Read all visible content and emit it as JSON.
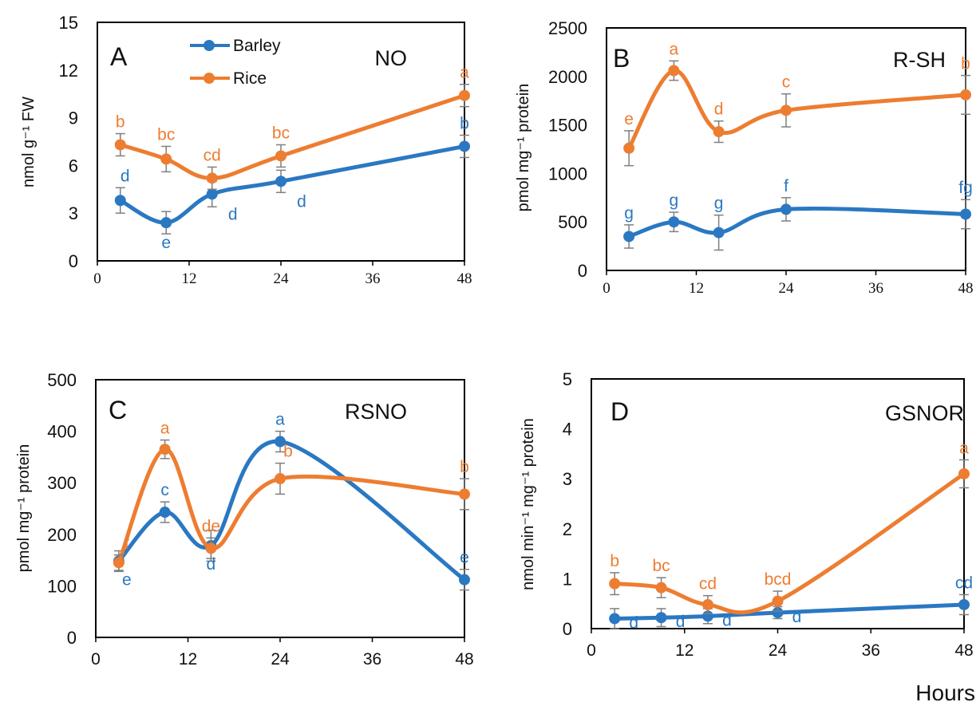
{
  "colors": {
    "barley": "#2a78c2",
    "rice": "#ed7d31",
    "error_bar": "#7f7f7f",
    "axis": "#000000"
  },
  "legend": {
    "items": [
      {
        "label": "Barley",
        "color": "#2a78c2"
      },
      {
        "label": "Rice",
        "color": "#ed7d31"
      }
    ]
  },
  "x_axis_title": "Hours",
  "chart_data": [
    {
      "type": "line",
      "panel": "A",
      "title": "NO",
      "ylabel": "nmol g⁻¹ FW",
      "xlim": [
        0,
        48
      ],
      "ylim": [
        0,
        15
      ],
      "xticks": [
        "0",
        "12",
        "24",
        "36",
        "48"
      ],
      "yticks": [
        "0",
        "3",
        "6",
        "9",
        "12",
        "15"
      ],
      "x_tick_font": "serif",
      "legend": "top-left",
      "x": [
        3,
        9,
        15,
        24,
        48
      ],
      "series": [
        {
          "name": "Barley",
          "values": [
            3.8,
            2.4,
            4.2,
            5.0,
            7.2
          ],
          "errors": [
            0.8,
            0.7,
            0.8,
            0.7,
            0.7
          ],
          "letters": [
            "d",
            "e",
            "d",
            "d",
            "b"
          ]
        },
        {
          "name": "Rice",
          "values": [
            7.3,
            6.4,
            5.2,
            6.6,
            10.4
          ],
          "errors": [
            0.7,
            0.8,
            0.7,
            0.7,
            0.7
          ],
          "letters": [
            "b",
            "bc",
            "cd",
            "bc",
            "a"
          ]
        }
      ]
    },
    {
      "type": "line",
      "panel": "B",
      "title": "R-SH",
      "ylabel": "pmol mg⁻¹ protein",
      "xlim": [
        0,
        48
      ],
      "ylim": [
        0,
        2500
      ],
      "xticks": [
        "0",
        "12",
        "24",
        "36",
        "48"
      ],
      "yticks": [
        "0",
        "500",
        "1000",
        "1500",
        "2000",
        "2500"
      ],
      "x_tick_font": "serif",
      "x": [
        3,
        9,
        15,
        24,
        48
      ],
      "series": [
        {
          "name": "Barley",
          "values": [
            350,
            500,
            390,
            630,
            580
          ],
          "errors": [
            120,
            100,
            180,
            120,
            150
          ],
          "letters": [
            "g",
            "g",
            "g",
            "f",
            "fg"
          ]
        },
        {
          "name": "Rice",
          "values": [
            1260,
            2060,
            1430,
            1650,
            1810
          ],
          "errors": [
            180,
            100,
            110,
            170,
            200
          ],
          "letters": [
            "e",
            "a",
            "d",
            "c",
            "b"
          ]
        }
      ]
    },
    {
      "type": "line",
      "panel": "C",
      "title": "RSNO",
      "ylabel": "pmol mg⁻¹ protein",
      "xlim": [
        0,
        48
      ],
      "ylim": [
        0,
        500
      ],
      "xticks": [
        "0",
        "12",
        "24",
        "36",
        "48"
      ],
      "yticks": [
        "0",
        "100",
        "200",
        "300",
        "400",
        "500"
      ],
      "x_tick_font": "sans",
      "x": [
        3,
        9,
        15,
        24,
        48
      ],
      "series": [
        {
          "name": "Barley",
          "values": [
            148,
            243,
            178,
            380,
            112
          ],
          "errors": [
            20,
            20,
            30,
            20,
            20
          ],
          "letters": [
            "e",
            "c",
            "d",
            "a",
            "e"
          ]
        },
        {
          "name": "Rice",
          "values": [
            145,
            365,
            173,
            308,
            278
          ],
          "errors": [
            15,
            18,
            20,
            30,
            30
          ],
          "letters": [
            "f",
            "a",
            "de",
            "b",
            "b"
          ]
        }
      ]
    },
    {
      "type": "line",
      "panel": "D",
      "title": "GSNOR",
      "ylabel": "nmol min⁻¹ mg⁻¹ protein",
      "xlim": [
        0,
        48
      ],
      "ylim": [
        0,
        5
      ],
      "xticks": [
        "0",
        "12",
        "24",
        "36",
        "48"
      ],
      "yticks": [
        "0",
        "1",
        "2",
        "3",
        "4",
        "5"
      ],
      "x_tick_font": "sans",
      "x": [
        3,
        9,
        15,
        24,
        48
      ],
      "series": [
        {
          "name": "Barley",
          "values": [
            0.2,
            0.22,
            0.25,
            0.32,
            0.48
          ],
          "errors": [
            0.2,
            0.18,
            0.15,
            0.12,
            0.2
          ],
          "letters": [
            "d",
            "d",
            "d",
            "d",
            "cd"
          ]
        },
        {
          "name": "Rice",
          "values": [
            0.9,
            0.82,
            0.48,
            0.55,
            3.1
          ],
          "errors": [
            0.22,
            0.2,
            0.18,
            0.2,
            0.28
          ],
          "letters": [
            "b",
            "bc",
            "cd",
            "bcd",
            "a"
          ]
        }
      ]
    }
  ]
}
